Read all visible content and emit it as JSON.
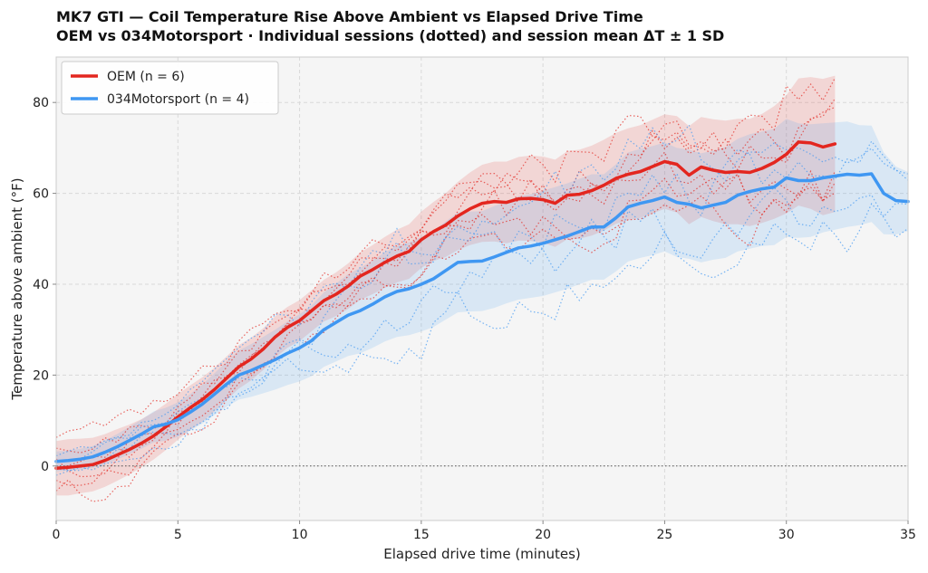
{
  "chart_data": {
    "type": "line",
    "title": "MK7 GTI  —  Coil Temperature Rise Above Ambient vs Elapsed Drive Time",
    "subtitle": "OEM vs 034Motorsport  ·  Individual sessions (dotted) and session mean ΔT ± 1 SD",
    "xlabel": "Elapsed drive time  (minutes)",
    "ylabel": "Temperature above ambient  (°F)",
    "xlim": [
      0,
      35
    ],
    "ylim": [
      -12,
      90
    ],
    "x_ticks": [
      0,
      5,
      10,
      15,
      20,
      25,
      30,
      35
    ],
    "y_ticks": [
      0,
      20,
      40,
      60,
      80
    ],
    "x_tick_labels": [
      "0",
      "5",
      "10",
      "15",
      "20",
      "25",
      "30",
      "35"
    ],
    "y_tick_labels": [
      "0",
      "20",
      "40",
      "60",
      "80"
    ],
    "grid": true,
    "zero_reference_line": true,
    "legend_position": "top-left",
    "legend": [
      "OEM (n = 6)",
      "034Motorsport (n = 4)"
    ],
    "series": [
      {
        "name": "OEM (n = 6)",
        "color": "#e3261f",
        "sessions": 6,
        "x": [
          0,
          0.5,
          1,
          1.5,
          2,
          2.5,
          3,
          3.5,
          4,
          4.5,
          5,
          5.5,
          6,
          6.5,
          7,
          7.5,
          8,
          8.5,
          9,
          9.5,
          10,
          10.5,
          11,
          11.5,
          12,
          12.5,
          13,
          13.5,
          14,
          14.5,
          15,
          15.5,
          16,
          16.5,
          17,
          17.5,
          18,
          18.5,
          19,
          19.5,
          20,
          20.5,
          21,
          21.5,
          22,
          22.5,
          23,
          23.5,
          24,
          24.5,
          25,
          25.5,
          26,
          26.5,
          27,
          27.5,
          28,
          28.5,
          29,
          29.5,
          30,
          30.5,
          31,
          31.5,
          32
        ],
        "mean": [
          -0.5,
          -0.3,
          0.0,
          0.3,
          1.2,
          2.4,
          3.6,
          5.0,
          6.6,
          8.6,
          10.8,
          12.8,
          14.6,
          16.8,
          19.3,
          21.8,
          23.5,
          25.7,
          28.4,
          30.5,
          32.0,
          34.2,
          36.4,
          37.8,
          39.6,
          41.8,
          43.2,
          44.8,
          46.2,
          47.2,
          49.8,
          51.6,
          53.0,
          55.0,
          56.6,
          57.8,
          58.2,
          58.0,
          58.8,
          58.9,
          58.6,
          57.8,
          59.6,
          59.8,
          60.6,
          61.8,
          63.3,
          64.2,
          64.8,
          65.9,
          67.0,
          66.4,
          64.0,
          65.8,
          65.1,
          64.6,
          64.8,
          64.6,
          65.5,
          66.8,
          68.6,
          71.3,
          71.1,
          70.2,
          70.9
        ],
        "sd": [
          6.0,
          6.2,
          6.0,
          5.9,
          5.8,
          5.7,
          5.5,
          5.3,
          5.2,
          5.1,
          5.0,
          4.9,
          4.9,
          4.8,
          4.8,
          4.8,
          4.7,
          4.6,
          4.6,
          4.5,
          4.5,
          4.5,
          4.6,
          4.8,
          5.0,
          5.2,
          5.4,
          5.6,
          5.8,
          6.0,
          6.2,
          6.5,
          7.0,
          7.5,
          8.0,
          8.5,
          8.8,
          9.0,
          9.2,
          9.4,
          9.5,
          9.6,
          9.7,
          9.8,
          9.9,
          10.0,
          10.0,
          10.1,
          10.2,
          10.3,
          10.4,
          10.6,
          10.8,
          11.0,
          11.2,
          11.4,
          11.6,
          11.8,
          12.0,
          12.4,
          13.0,
          14.0,
          14.5,
          15.0,
          15.0
        ]
      },
      {
        "name": "034Motorsport (n = 4)",
        "color": "#3f97f2",
        "sessions": 4,
        "x": [
          0,
          0.5,
          1,
          1.5,
          2,
          2.5,
          3,
          3.5,
          4,
          4.5,
          5,
          5.5,
          6,
          6.5,
          7,
          7.5,
          8,
          8.5,
          9,
          9.5,
          10,
          10.5,
          11,
          11.5,
          12,
          12.5,
          13,
          13.5,
          14,
          14.5,
          15,
          15.5,
          16,
          16.5,
          17,
          17.5,
          18,
          18.5,
          19,
          19.5,
          20,
          20.5,
          21,
          21.5,
          22,
          22.5,
          23,
          23.5,
          24,
          24.5,
          25,
          25.5,
          26,
          26.5,
          27,
          27.5,
          28,
          28.5,
          29,
          29.5,
          30,
          30.5,
          31,
          31.5,
          32,
          32.5,
          33,
          33.5,
          34,
          34.5,
          35
        ],
        "mean": [
          1.0,
          1.2,
          1.5,
          2.0,
          3.0,
          4.2,
          5.6,
          7.0,
          8.6,
          9.2,
          10.2,
          11.8,
          13.6,
          15.8,
          18.0,
          20.0,
          21.0,
          22.2,
          23.4,
          24.8,
          26.0,
          27.6,
          30.0,
          31.6,
          33.2,
          34.2,
          35.6,
          37.2,
          38.4,
          39.0,
          40.0,
          41.2,
          43.0,
          44.8,
          45.0,
          45.1,
          46.0,
          47.0,
          48.0,
          48.4,
          49.0,
          49.8,
          50.6,
          51.6,
          52.6,
          52.6,
          54.6,
          57.0,
          57.8,
          58.4,
          59.2,
          58.0,
          57.6,
          56.8,
          57.4,
          58.0,
          59.6,
          60.4,
          61.0,
          61.4,
          63.4,
          62.8,
          62.8,
          63.4,
          63.8,
          64.2,
          64.0,
          64.3,
          60.0,
          58.4,
          58.2
        ],
        "sd": [
          2.2,
          2.2,
          2.3,
          2.4,
          2.6,
          2.8,
          3.0,
          3.2,
          3.4,
          3.6,
          3.8,
          4.0,
          4.3,
          4.6,
          5.0,
          5.4,
          5.8,
          6.2,
          6.6,
          7.0,
          7.4,
          7.8,
          8.2,
          8.6,
          9.0,
          9.4,
          9.6,
          9.8,
          10.0,
          10.2,
          10.4,
          10.6,
          10.8,
          11.0,
          11.0,
          11.0,
          11.2,
          11.2,
          11.4,
          11.4,
          11.6,
          11.6,
          11.6,
          11.6,
          11.6,
          11.6,
          11.8,
          12.0,
          12.0,
          12.0,
          12.0,
          12.0,
          12.0,
          12.0,
          12.0,
          12.2,
          12.4,
          12.6,
          12.6,
          12.8,
          13.0,
          12.6,
          12.4,
          12.0,
          11.8,
          11.6,
          11.0,
          10.6,
          9.0,
          7.5,
          6.5
        ]
      }
    ]
  }
}
